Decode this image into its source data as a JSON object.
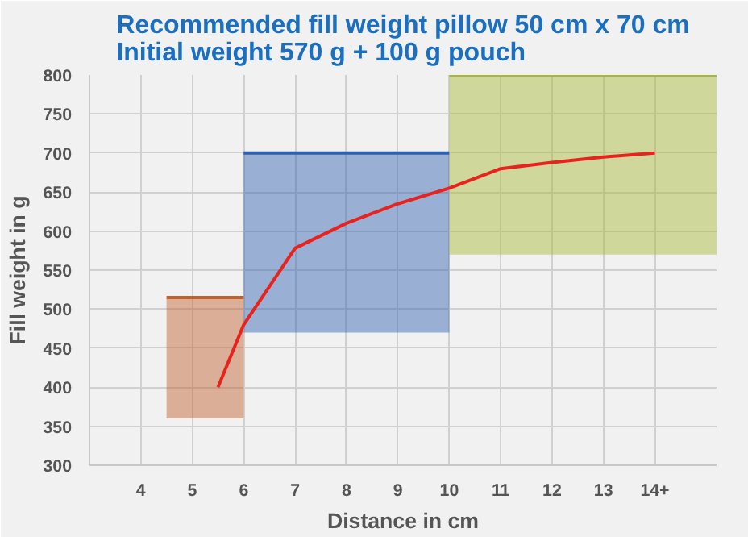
{
  "chart_data": {
    "type": "line",
    "title": "Recommended fill weight pillow 50 cm x 70 cm\nInitial weight 570 g + 100 g pouch",
    "xlabel": "Distance in cm",
    "ylabel": "Fill weight in g",
    "series": [
      {
        "x": [
          4.5,
          6
        ],
        "values": [
          515,
          515
        ],
        "lower": [
          360,
          360
        ],
        "upper": [
          515,
          515
        ],
        "color": "#c0602a"
      },
      {
        "x": [
          6,
          10
        ],
        "values": [
          700,
          700
        ],
        "lower": [
          470,
          470
        ],
        "upper": [
          700,
          700
        ],
        "color": "#2f5fb0"
      },
      {
        "x": [
          10,
          15.2
        ],
        "values": [
          800,
          800
        ],
        "lower": [
          570,
          570
        ],
        "upper": [
          800,
          800
        ],
        "color": "#a8b830"
      },
      {
        "x": [
          5.5,
          6,
          7,
          8,
          9,
          10,
          11,
          12,
          13,
          14
        ],
        "values": [
          400,
          480,
          578,
          610,
          635,
          655,
          680,
          688,
          695,
          700
        ],
        "color": "#e8221c"
      }
    ],
    "xlim": [
      3,
      15.2
    ],
    "xticks": [
      4,
      5,
      6,
      7,
      8,
      9,
      10,
      11,
      12,
      13,
      {
        "value": 14,
        "label": "14+"
      }
    ],
    "ylim": [
      300,
      800
    ],
    "yticks": [
      300,
      350,
      400,
      450,
      500,
      550,
      600,
      650,
      700,
      750,
      800
    ],
    "grid": true,
    "marker": "none",
    "line_style": "solid"
  }
}
